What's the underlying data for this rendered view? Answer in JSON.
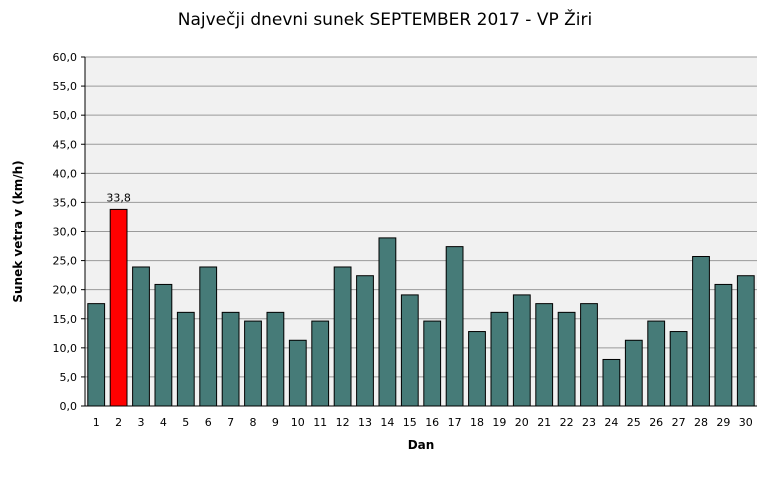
{
  "chart_data": {
    "type": "bar",
    "title": "Največji dnevni sunek SEPTEMBER  2017 - VP Žiri",
    "xlabel": "Dan",
    "ylabel": "Sunek vetra  v (km/h)",
    "categories": [
      "1",
      "2",
      "3",
      "4",
      "5",
      "6",
      "7",
      "8",
      "9",
      "10",
      "11",
      "12",
      "13",
      "14",
      "15",
      "16",
      "17",
      "18",
      "19",
      "20",
      "21",
      "22",
      "23",
      "24",
      "25",
      "26",
      "27",
      "28",
      "29",
      "30"
    ],
    "values": [
      17.6,
      33.8,
      23.9,
      20.9,
      16.1,
      23.9,
      16.1,
      14.6,
      16.1,
      11.3,
      14.6,
      23.9,
      22.4,
      28.9,
      19.1,
      14.6,
      27.4,
      12.8,
      16.1,
      19.1,
      17.6,
      16.1,
      17.6,
      8.0,
      11.3,
      14.6,
      12.8,
      25.7,
      20.9,
      22.4
    ],
    "ylim": [
      0,
      60
    ],
    "yticks": [
      "0,0",
      "5,0",
      "10,0",
      "15,0",
      "20,0",
      "25,0",
      "30,0",
      "35,0",
      "40,0",
      "45,0",
      "50,0",
      "55,0",
      "60,0"
    ],
    "grid": true,
    "bar_color": "#467b78",
    "highlight_color": "#ff0000",
    "highlight_index": 1,
    "highlight_label": "33,8",
    "plot_background": "#f1f1f1"
  }
}
